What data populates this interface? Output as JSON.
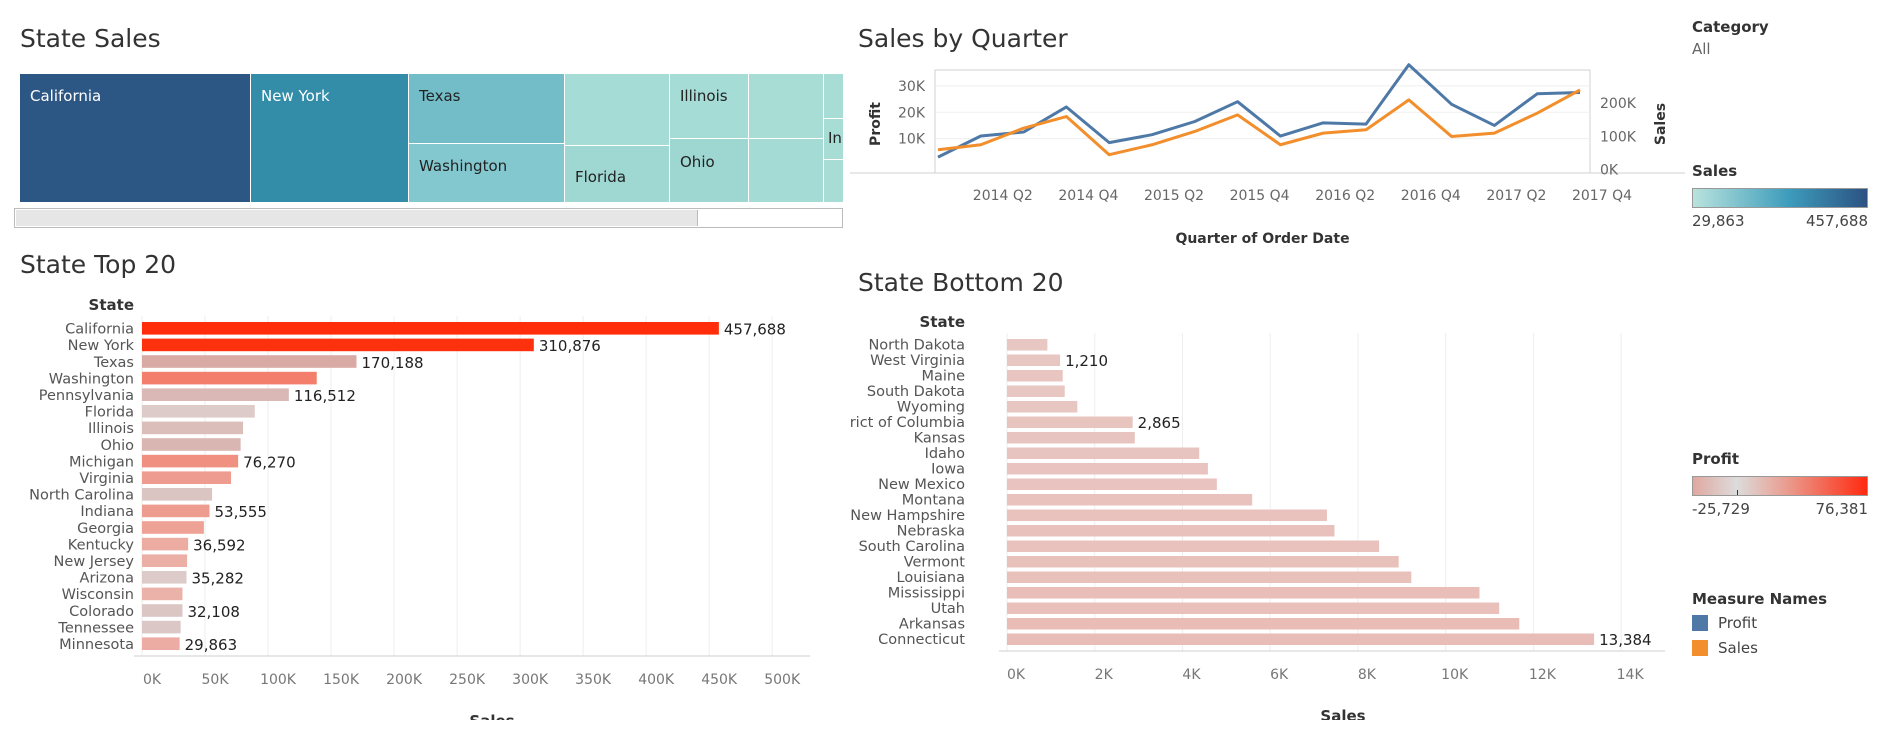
{
  "treemap_title": "State Sales",
  "quarter_title": "Sales by Quarter",
  "top_title": "State Top 20",
  "bottom_title": "State Bottom 20",
  "legend": {
    "category_title": "Category",
    "category_value": "All",
    "sales_title": "Sales",
    "sales_min": "29,863",
    "sales_max": "457,688",
    "profit_title": "Profit",
    "profit_min": "-25,729",
    "profit_max": "76,381",
    "measure_title": "Measure Names",
    "measure_items": [
      {
        "label": "Profit",
        "color": "#4e79a7"
      },
      {
        "label": "Sales",
        "color": "#f28e2b"
      }
    ]
  },
  "chart_data": [
    {
      "type": "treemap",
      "title": "State Sales",
      "labels": [
        "California",
        "New York",
        "Texas",
        "Washington",
        "Florida",
        "Illinois",
        "Ohio",
        "In"
      ],
      "color_scale": {
        "measure": "Sales",
        "min": 29863,
        "max": 457688,
        "low_color": "#b9e3dd",
        "high_color": "#2c5282"
      }
    },
    {
      "type": "line",
      "title": "Sales by Quarter",
      "xlabel": "Quarter of Order Date",
      "ylabel_left": "Profit",
      "ylabel_right": "Sales",
      "x": [
        "2014 Q1",
        "2014 Q2",
        "2014 Q3",
        "2014 Q4",
        "2015 Q1",
        "2015 Q2",
        "2015 Q3",
        "2015 Q4",
        "2016 Q1",
        "2016 Q2",
        "2016 Q3",
        "2016 Q4",
        "2017 Q1",
        "2017 Q2",
        "2017 Q3",
        "2017 Q4"
      ],
      "x_tick_labels": [
        "2014 Q2",
        "2014 Q4",
        "2015 Q2",
        "2015 Q4",
        "2016 Q2",
        "2016 Q4",
        "2017 Q2",
        "2017 Q4"
      ],
      "y_left_ticks": [
        "10K",
        "20K",
        "30K"
      ],
      "y_right_ticks": [
        "0K",
        "100K",
        "200K"
      ],
      "y_left_lim": [
        -3000,
        36000
      ],
      "y_right_lim": [
        -10000,
        300000
      ],
      "series": [
        {
          "name": "Profit",
          "axis": "left",
          "color": "#4e79a7",
          "values": [
            3000,
            11000,
            12500,
            22000,
            8500,
            11500,
            16500,
            24000,
            11000,
            16000,
            15500,
            38000,
            23000,
            15000,
            27000,
            27500
          ]
        },
        {
          "name": "Sales",
          "axis": "right",
          "color": "#f28e2b",
          "values": [
            60000,
            75000,
            125000,
            160000,
            45000,
            75000,
            115000,
            165000,
            75000,
            110000,
            120000,
            210000,
            100000,
            110000,
            170000,
            240000
          ]
        }
      ]
    },
    {
      "type": "bar",
      "orientation": "horizontal",
      "title": "State Top 20",
      "row_header": "State",
      "xlabel": "Sales",
      "xlim": [
        0,
        530000
      ],
      "x_ticks": [
        0,
        50000,
        100000,
        150000,
        200000,
        250000,
        300000,
        350000,
        400000,
        450000,
        500000
      ],
      "x_tick_labels": [
        "0K",
        "50K",
        "100K",
        "150K",
        "200K",
        "250K",
        "300K",
        "350K",
        "400K",
        "450K",
        "500K"
      ],
      "categories": [
        "California",
        "New York",
        "Texas",
        "Washington",
        "Pennsylvania",
        "Florida",
        "Illinois",
        "Ohio",
        "Michigan",
        "Virginia",
        "North Carolina",
        "Indiana",
        "Georgia",
        "Kentucky",
        "New Jersey",
        "Arizona",
        "Wisconsin",
        "Colorado",
        "Tennessee",
        "Minnesota"
      ],
      "values": [
        457688,
        310876,
        170188,
        138641,
        116512,
        89474,
        80166,
        78258,
        76270,
        70637,
        55603,
        53555,
        49096,
        36592,
        35764,
        35282,
        32115,
        32108,
        30662,
        29863
      ],
      "data_labels": [
        "457,688",
        "310,876",
        "170,188",
        "",
        "116,512",
        "",
        "",
        "",
        "76,270",
        "",
        "",
        "53,555",
        "",
        "36,592",
        "",
        "35,282",
        "",
        "32,108",
        "",
        "29,863"
      ],
      "profit": [
        76381,
        74039,
        -25729,
        33403,
        -15560,
        -3399,
        -12608,
        -16971,
        24463,
        18598,
        -7491,
        18383,
        16250,
        11200,
        9773,
        -3428,
        8402,
        -6528,
        -5342,
        10823
      ]
    },
    {
      "type": "bar",
      "orientation": "horizontal",
      "title": "State Bottom 20",
      "row_header": "State",
      "xlabel": "Sales",
      "xlim": [
        0,
        15000
      ],
      "x_ticks": [
        0,
        2000,
        4000,
        6000,
        8000,
        10000,
        12000,
        14000
      ],
      "x_tick_labels": [
        "0K",
        "2K",
        "4K",
        "6K",
        "8K",
        "10K",
        "12K",
        "14K"
      ],
      "categories": [
        "North Dakota",
        "West Virginia",
        "Maine",
        "South Dakota",
        "Wyoming",
        "District of Columbia",
        "Kansas",
        "Idaho",
        "Iowa",
        "New Mexico",
        "Montana",
        "New Hampshire",
        "Nebraska",
        "South Carolina",
        "Vermont",
        "Louisiana",
        "Mississippi",
        "Utah",
        "Arkansas",
        "Connecticut"
      ],
      "values": [
        920,
        1210,
        1271,
        1316,
        1603,
        2865,
        2914,
        4382,
        4580,
        4784,
        5589,
        7293,
        7465,
        8482,
        8929,
        9217,
        10771,
        11220,
        11678,
        13384
      ],
      "data_labels": [
        "",
        "1,210",
        "",
        "",
        "",
        "2,865",
        "",
        "",
        "",
        "",
        "",
        "",
        "",
        "",
        "",
        "",
        "",
        "",
        "",
        "13,384"
      ],
      "profit": [
        230,
        186,
        454,
        395,
        100,
        1060,
        836,
        827,
        1184,
        1157,
        1833,
        1707,
        2037,
        1769,
        2245,
        2196,
        3173,
        2547,
        4009,
        3511
      ]
    }
  ]
}
